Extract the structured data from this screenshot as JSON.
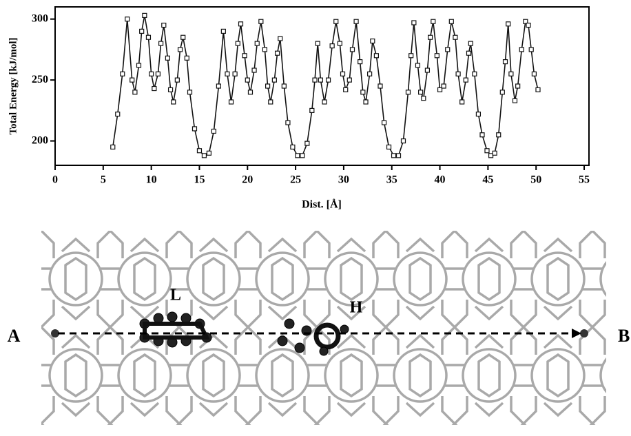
{
  "chart_data": {
    "type": "line",
    "x_label": "Dist. [Å]",
    "y_label": "Total Energy [kJ/mol]",
    "xlim": [
      0,
      55.5
    ],
    "ylim": [
      180,
      310
    ],
    "xticks": [
      0,
      5,
      10,
      15,
      20,
      25,
      30,
      35,
      40,
      45,
      50,
      55
    ],
    "yticks": [
      200,
      250,
      300
    ],
    "color": "#111111",
    "marker": "square",
    "x": [
      6.0,
      6.5,
      7.0,
      7.5,
      8.0,
      8.3,
      8.7,
      9.0,
      9.3,
      9.7,
      10.0,
      10.3,
      10.7,
      11.0,
      11.3,
      11.7,
      12.0,
      12.3,
      12.7,
      13.0,
      13.3,
      13.7,
      14.0,
      14.5,
      15.0,
      15.5,
      16.0,
      16.5,
      17.0,
      17.5,
      17.9,
      18.3,
      18.7,
      19.0,
      19.3,
      19.7,
      20.0,
      20.3,
      20.7,
      21.0,
      21.4,
      21.8,
      22.1,
      22.4,
      22.8,
      23.1,
      23.4,
      23.8,
      24.2,
      24.7,
      25.2,
      25.7,
      26.2,
      26.7,
      27.0,
      27.3,
      27.6,
      28.0,
      28.4,
      28.8,
      29.2,
      29.6,
      29.9,
      30.2,
      30.6,
      30.9,
      31.3,
      31.7,
      32.0,
      32.3,
      32.7,
      33.0,
      33.4,
      33.8,
      34.2,
      34.7,
      35.2,
      35.7,
      36.2,
      36.7,
      37.0,
      37.3,
      37.7,
      38.0,
      38.3,
      38.7,
      39.0,
      39.3,
      39.7,
      40.0,
      40.4,
      40.8,
      41.2,
      41.6,
      41.9,
      42.3,
      42.7,
      43.0,
      43.2,
      43.6,
      44.0,
      44.4,
      44.9,
      45.3,
      45.7,
      46.1,
      46.5,
      46.8,
      47.1,
      47.4,
      47.8,
      48.1,
      48.5,
      48.9,
      49.2,
      49.5,
      49.8,
      50.2
    ],
    "values": [
      195,
      222,
      255,
      300,
      250,
      240,
      262,
      290,
      303,
      285,
      255,
      243,
      255,
      280,
      295,
      268,
      242,
      232,
      250,
      275,
      285,
      268,
      240,
      210,
      192,
      188,
      190,
      208,
      245,
      290,
      255,
      232,
      255,
      280,
      296,
      270,
      250,
      240,
      258,
      280,
      298,
      275,
      245,
      232,
      250,
      272,
      284,
      245,
      215,
      195,
      188,
      188,
      198,
      225,
      250,
      280,
      250,
      232,
      250,
      278,
      298,
      280,
      255,
      242,
      250,
      275,
      298,
      265,
      240,
      232,
      255,
      282,
      270,
      245,
      215,
      195,
      188,
      188,
      200,
      240,
      270,
      297,
      262,
      240,
      235,
      258,
      285,
      298,
      270,
      242,
      245,
      275,
      298,
      285,
      255,
      232,
      250,
      272,
      280,
      255,
      222,
      205,
      192,
      188,
      190,
      205,
      240,
      265,
      296,
      255,
      233,
      245,
      275,
      298,
      295,
      275,
      255,
      242
    ]
  },
  "image": {
    "start_label": "A",
    "end_label": "B",
    "site_1_label": "L",
    "site_2_label": "H"
  }
}
